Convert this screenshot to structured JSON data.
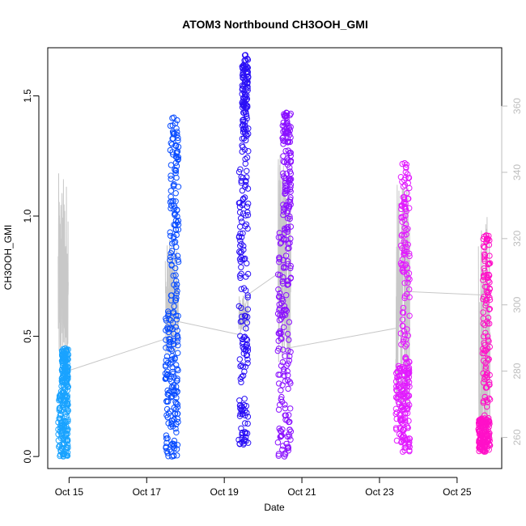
{
  "chart_data": {
    "type": "scatter",
    "title": "ATOM3 Northbound CH3OOH_GMI",
    "xlabel": "Date",
    "ylabel": "CH3OOH_GMI",
    "x_ticks": [
      "Oct 15",
      "Oct 17",
      "Oct 19",
      "Oct 21",
      "Oct 23",
      "Oct 25"
    ],
    "x_tick_days": [
      15,
      17,
      19,
      21,
      23,
      25
    ],
    "xlim_days": [
      14.45,
      26.15
    ],
    "y_ticks": [
      "0.0",
      "0.5",
      "1.0",
      "1.5"
    ],
    "y_tick_values": [
      0.0,
      0.5,
      1.0,
      1.5
    ],
    "ylim": [
      -0.05,
      1.7
    ],
    "y2_ticks": [
      "260",
      "280",
      "300",
      "320",
      "340",
      "360"
    ],
    "y2_tick_values": [
      260,
      280,
      300,
      320,
      340,
      360
    ],
    "y2lim": [
      250.6,
      377.6
    ],
    "grid": false,
    "flights": [
      {
        "name": "flight1",
        "color": "#1aa3ff",
        "x_start": 14.72,
        "x_end": 14.98,
        "y_min": 0.0,
        "y_max": 0.45,
        "y_dense_max": 0.3,
        "y2_min": 280,
        "y2_max": 340
      },
      {
        "name": "flight2",
        "color": "#0a4dff",
        "x_start": 17.48,
        "x_end": 17.82,
        "y_min": 0.0,
        "y_max": 1.41,
        "y_dense_max": 0.62,
        "y2_min": 285,
        "y2_max": 320
      },
      {
        "name": "flight3",
        "color": "#2a10f5",
        "x_start": 19.37,
        "x_end": 19.62,
        "y_min": 0.05,
        "y_max": 1.67,
        "y_dense_max": 1.2,
        "y2_min": 292,
        "y2_max": 303
      },
      {
        "name": "flight4",
        "color": "#8a10ff",
        "x_start": 20.38,
        "x_end": 20.72,
        "y_min": 0.0,
        "y_max": 1.43,
        "y_dense_max": 0.95,
        "y2_min": 282,
        "y2_max": 346
      },
      {
        "name": "flight5",
        "color": "#e21aff",
        "x_start": 23.42,
        "x_end": 23.78,
        "y_min": 0.02,
        "y_max": 1.22,
        "y_dense_max": 0.38,
        "y2_min": 268,
        "y2_max": 337
      },
      {
        "name": "flight6",
        "color": "#ff10c8",
        "x_start": 25.55,
        "x_end": 25.85,
        "y_min": 0.02,
        "y_max": 0.92,
        "y_dense_max": 0.16,
        "y2_min": 260,
        "y2_max": 330
      }
    ],
    "theta_connectors": [
      {
        "x": 14.95,
        "y2": 280
      },
      {
        "x": 17.55,
        "y2": 290
      },
      {
        "x": 17.8,
        "y2": 295
      },
      {
        "x": 19.4,
        "y2": 291
      },
      {
        "x": 19.6,
        "y2": 303
      },
      {
        "x": 20.45,
        "y2": 310
      },
      {
        "x": 20.65,
        "y2": 287
      },
      {
        "x": 23.45,
        "y2": 293
      },
      {
        "x": 23.75,
        "y2": 304
      },
      {
        "x": 25.6,
        "y2": 303
      }
    ]
  }
}
